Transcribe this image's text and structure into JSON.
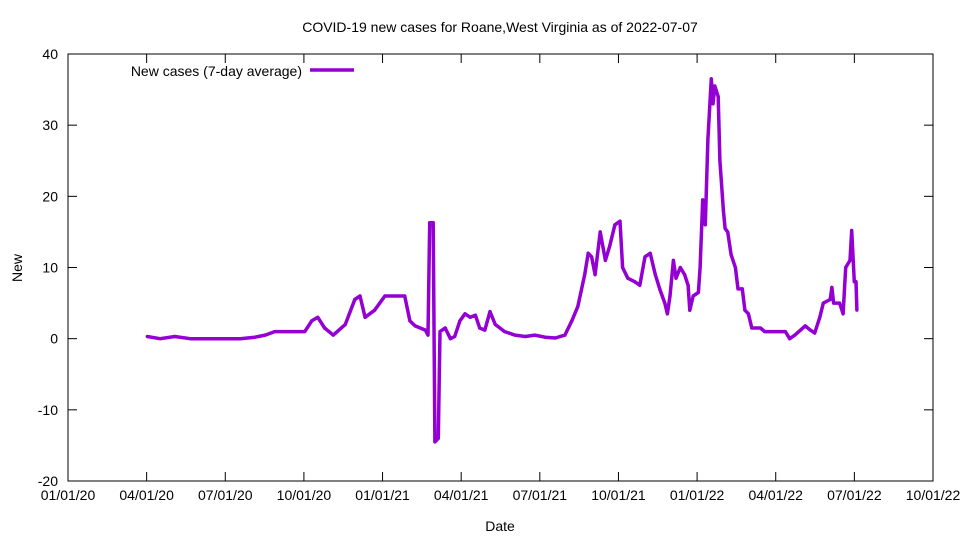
{
  "chart_data": {
    "type": "line",
    "title": "COVID-19 new cases for Roane,West Virginia as of 2022-07-07",
    "xlabel": "Date",
    "ylabel": "New",
    "x_units": "days since 2020-01-01",
    "xlim": [
      0,
      1004.4
    ],
    "ylim": [
      -20,
      40
    ],
    "yticks": [
      -20,
      -10,
      0,
      10,
      20,
      30,
      40
    ],
    "xtick_labels": [
      "01/01/20",
      "04/01/20",
      "07/01/20",
      "10/01/20",
      "01/01/21",
      "04/01/21",
      "07/01/21",
      "10/01/21",
      "01/01/22",
      "04/01/22",
      "07/01/22",
      "10/01/22"
    ],
    "grid": false,
    "legend_position": "top-left",
    "colors": {
      "series": "#9400d3"
    },
    "series": [
      {
        "name": "New cases (7-day average)",
        "x": [
          92,
          107,
          124,
          142,
          159,
          177,
          200,
          217,
          229,
          240,
          252,
          264,
          275,
          283,
          290,
          298,
          308,
          322,
          333,
          339,
          345,
          356,
          368,
          380,
          391,
          397,
          403,
          415,
          418,
          420,
          424,
          426,
          430,
          432,
          438,
          444,
          449,
          455,
          461,
          467,
          473,
          478,
          484,
          490,
          496,
          507,
          519,
          531,
          542,
          554,
          566,
          577,
          585,
          592,
          600,
          604,
          608,
          612,
          618,
          624,
          629,
          635,
          641,
          644,
          650,
          658,
          664,
          670,
          676,
          682,
          687,
          693,
          696,
          699,
          703,
          706,
          711,
          716,
          720,
          722,
          726,
          732,
          734,
          737,
          740,
          743,
          747,
          749,
          751,
          755,
          757,
          761,
          763,
          766,
          770,
          775,
          778,
          783,
          786,
          790,
          794,
          804,
          809,
          821,
          833,
          838,
          844,
          856,
          862,
          867,
          873,
          877,
          885,
          887,
          889,
          896,
          900,
          903,
          908,
          910,
          913,
          915,
          916
        ],
        "y": [
          0.3,
          0,
          0.3,
          0,
          0,
          0,
          0,
          0.2,
          0.5,
          1,
          1,
          1,
          1,
          2.5,
          3,
          1.5,
          0.5,
          2,
          5.5,
          6,
          3,
          4,
          6,
          6,
          6,
          2.5,
          1.8,
          1.2,
          0.5,
          16.3,
          16.3,
          -14.5,
          -14,
          1,
          1.5,
          0,
          0.3,
          2.5,
          3.5,
          3,
          3.3,
          1.5,
          1.2,
          3.8,
          2,
          1,
          0.5,
          0.3,
          0.5,
          0.2,
          0.1,
          0.5,
          2.5,
          4.5,
          9,
          12,
          11.5,
          9,
          15,
          11,
          13,
          16,
          16.5,
          10,
          8.5,
          8,
          7.5,
          11.5,
          12,
          9,
          7,
          5,
          3.5,
          6,
          11,
          8.5,
          10,
          9,
          7.5,
          4,
          6,
          6.5,
          10,
          19.5,
          16,
          28,
          36.5,
          33,
          35.5,
          34,
          25,
          18,
          15.5,
          15,
          11.8,
          10,
          7,
          7,
          4,
          3.5,
          1.5,
          1.5,
          1,
          1,
          1,
          0,
          0.5,
          1.8,
          1.2,
          0.8,
          3,
          5,
          5.5,
          7.2,
          5,
          5,
          3.5,
          10,
          11,
          15.2,
          8,
          8,
          4
        ]
      }
    ]
  }
}
